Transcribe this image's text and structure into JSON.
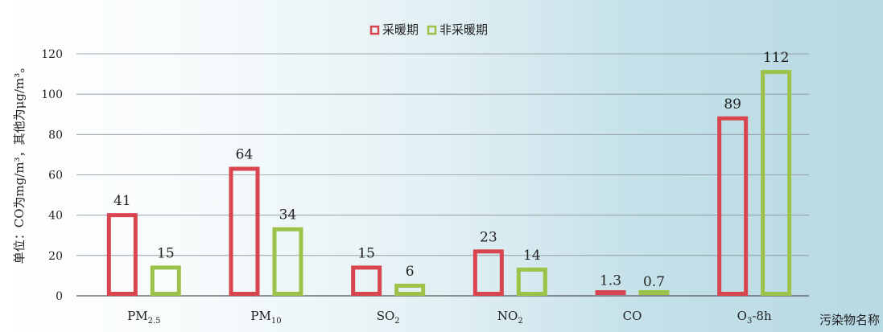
{
  "chart_data": {
    "type": "bar",
    "ylabel": "单位：CO为mg/m³，其他为μg/m³。",
    "xlabel": "污染物名称",
    "categories": [
      {
        "main": "PM",
        "sub": "2.5"
      },
      {
        "main": "PM",
        "sub": "10"
      },
      {
        "main": "SO",
        "sub": "2"
      },
      {
        "main": "NO",
        "sub": "2"
      },
      {
        "main": "CO",
        "sub": ""
      },
      {
        "main": "O",
        "sub": "3",
        "suffix": "-8h"
      }
    ],
    "series": [
      {
        "name": "采暖期",
        "values": [
          41,
          64,
          15,
          23,
          1.3,
          89
        ],
        "labels": [
          "41",
          "64",
          "15",
          "23",
          "1.3",
          "89"
        ],
        "color": "#d8454f"
      },
      {
        "name": "非采暖期",
        "values": [
          15,
          34,
          6,
          14,
          0.7,
          112
        ],
        "labels": [
          "15",
          "34",
          "6",
          "14",
          "0.7",
          "112"
        ],
        "color": "#9dc24a"
      }
    ],
    "ylim": [
      0,
      120
    ],
    "yticks": [
      0,
      20,
      40,
      60,
      80,
      100,
      120
    ],
    "grid": true,
    "legend_position": "top-center"
  },
  "colors": {
    "heating": "#d8454f",
    "non_heating": "#9dc24a",
    "grid": "#8a9399",
    "axis": "#555555"
  }
}
